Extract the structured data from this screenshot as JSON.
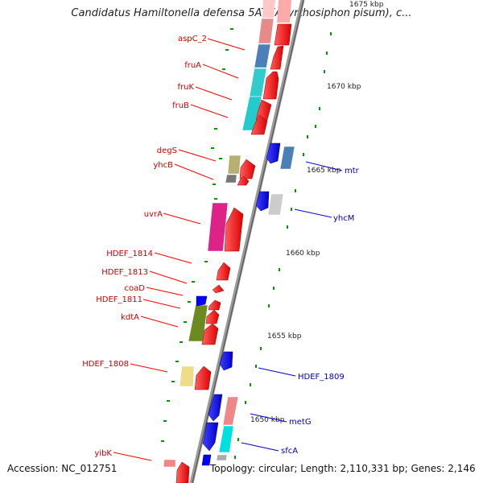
{
  "title": "Candidatus Hamiltonella defensa 5AT (Acyrthosiphon pisum), c...",
  "footer": {
    "accession": "Accession: NC_012751",
    "topology": "Topology: circular; Length: 2,110,331 bp; Genes: 2,146"
  },
  "colors": {
    "forward_label": "#cc0000",
    "reverse_label": "#0000aa",
    "forward_arrow": "#ff0000",
    "reverse_arrow": "#0000ff",
    "backbone": "#888888",
    "tick": "#009900"
  },
  "scale_labels": [
    "1675 kbp",
    "1670 kbp",
    "1665 kbp",
    "1660 kbp",
    "1655 kbp",
    "1650 kbp"
  ],
  "forward_labels": [
    "aspC_2",
    "fruA",
    "fruK",
    "fruB",
    "degS",
    "yhcB",
    "uvrA",
    "HDEF_1814",
    "HDEF_1813",
    "coaD",
    "HDEF_1811",
    "kdtA",
    "HDEF_1808",
    "yibK"
  ],
  "reverse_labels": [
    "mtr",
    "yhcM",
    "HDEF_1809",
    "metG",
    "sfcA"
  ]
}
